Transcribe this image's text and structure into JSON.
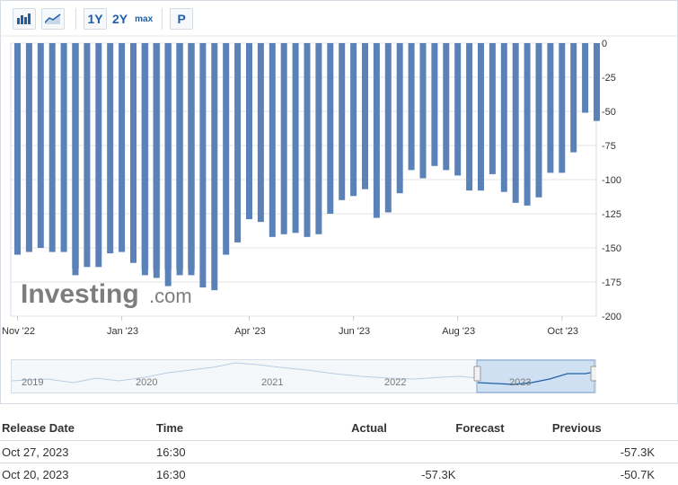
{
  "toolbar": {
    "range_1y": "1Y",
    "range_2y": "2Y",
    "range_max": "max",
    "p_label": "P"
  },
  "watermark": {
    "brand": "Investing",
    "suffix": ".com"
  },
  "colors": {
    "bar": "#5b82b8",
    "bar_prev": "#a9bfdc",
    "grid": "#e6e6e6",
    "axis_text": "#333333",
    "accent": "#1f5fa8"
  },
  "chart_data": {
    "type": "bar",
    "title": "",
    "xlabel": "",
    "ylabel": "",
    "ylim": [
      -200,
      0
    ],
    "y_ticks": [
      0,
      -25,
      -50,
      -75,
      -100,
      -125,
      -150,
      -175,
      -200
    ],
    "x_tick_labels": [
      {
        "label": "Nov '22",
        "index": 0
      },
      {
        "label": "Jan '23",
        "index": 9
      },
      {
        "label": "Apr '23",
        "index": 20
      },
      {
        "label": "Jun '23",
        "index": 29
      },
      {
        "label": "Aug '23",
        "index": 38
      },
      {
        "label": "Oct '23",
        "index": 47
      }
    ],
    "series": [
      {
        "values": [
          -155,
          -153,
          -150,
          -153,
          -153,
          -170,
          -164,
          -164,
          -154,
          -153,
          -161,
          -170,
          -172,
          -178,
          -170,
          -170,
          -179,
          -181,
          -155,
          -146,
          -129,
          -131,
          -142,
          -140,
          -139,
          -142,
          -140,
          -125,
          -115,
          -112,
          -107,
          -128,
          -124,
          -110,
          -93,
          -99,
          -90,
          -93,
          -97,
          -108,
          -108,
          -96,
          -109,
          -117,
          -119,
          -113,
          -95,
          -95,
          -80,
          -51,
          -57
        ]
      },
      {
        "values": [
          null,
          null,
          null,
          null,
          null,
          -165,
          null,
          null,
          null,
          null,
          null,
          -166,
          -166,
          -166,
          -166,
          -166,
          null,
          null,
          null,
          null,
          null,
          null,
          null,
          null,
          null,
          null,
          null,
          null,
          null,
          null,
          null,
          null,
          null,
          null,
          null,
          null,
          null,
          null,
          null,
          null,
          null,
          null,
          null,
          null,
          null,
          null,
          null,
          null,
          null,
          null,
          null
        ]
      }
    ]
  },
  "navigator": {
    "years": [
      "2019",
      "2020",
      "2021",
      "2022",
      "2023"
    ]
  },
  "table": {
    "headers": {
      "date": "Release Date",
      "time": "Time",
      "actual": "Actual",
      "forecast": "Forecast",
      "previous": "Previous"
    },
    "rows": [
      {
        "date": "Oct 27, 2023",
        "time": "16:30",
        "actual": "",
        "forecast": "",
        "previous": "-57.3K"
      },
      {
        "date": "Oct 20, 2023",
        "time": "16:30",
        "actual": "-57.3K",
        "forecast": "",
        "previous": "-50.7K"
      }
    ]
  }
}
